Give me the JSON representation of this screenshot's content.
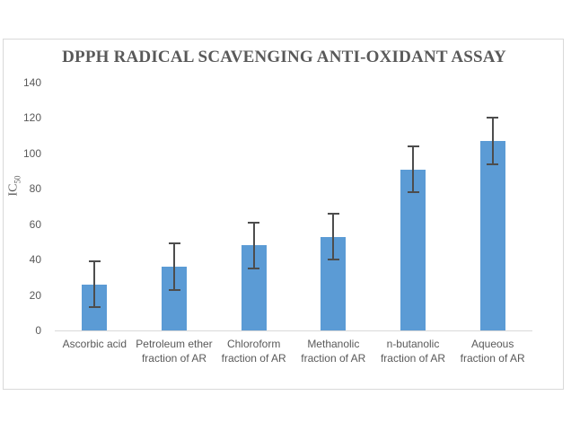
{
  "chart_data": {
    "type": "bar",
    "title": "DPPH RADICAL SCAVENGING ANTI-OXIDANT ASSAY",
    "ylabel_main": "IC",
    "ylabel_sub": "50",
    "xlabel": "",
    "categories": [
      "Ascorbic acid",
      "Petroleum ether fraction of AR",
      "Chloroform fraction of AR",
      "Methanolic fraction of AR",
      "n-butanolic fraction of AR",
      "Aqueous fraction of AR"
    ],
    "values": [
      26,
      36,
      48,
      53,
      91,
      107
    ],
    "error_bars": [
      13,
      13,
      13,
      13,
      13,
      13
    ],
    "ylim": [
      0,
      140
    ],
    "yticks": [
      0,
      20,
      40,
      60,
      80,
      100,
      120,
      140
    ],
    "grid": false,
    "legend_position": "none",
    "colors": {
      "bar": "#5B9BD5",
      "error_bar": "#4D4D4D",
      "labels": "#595959",
      "title": "#595959",
      "frame_border": "#D9D9D9",
      "axis_line": "#D9D9D9"
    }
  }
}
